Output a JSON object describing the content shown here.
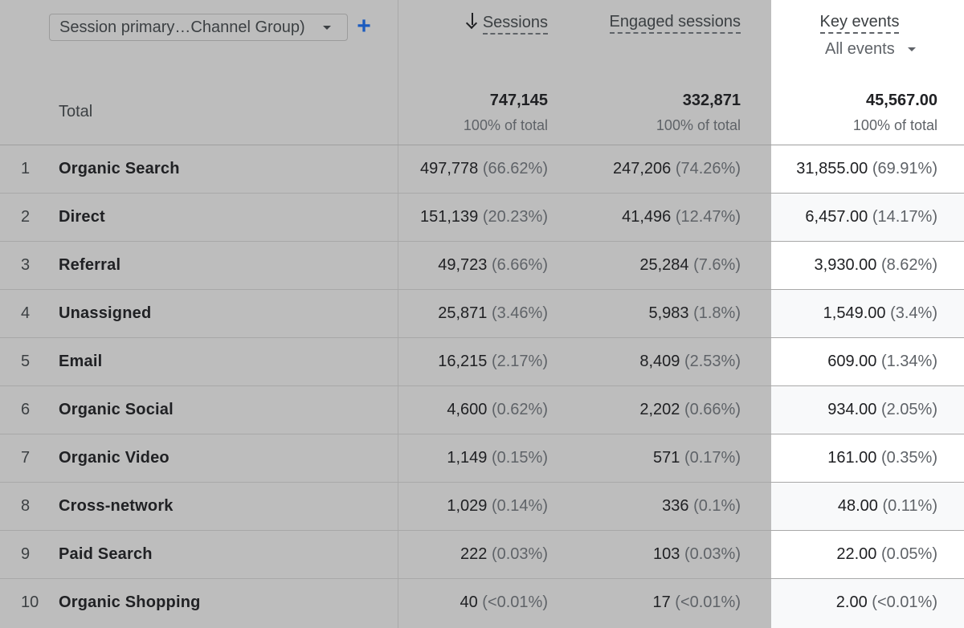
{
  "header": {
    "dimension_select": "Session primary…Channel Group)",
    "add_dimension": "+",
    "sessions": "Sessions",
    "engaged_sessions": "Engaged sessions",
    "key_events": "Key events",
    "key_events_filter": "All events"
  },
  "total": {
    "label": "Total",
    "sessions": "747,145",
    "sessions_pct": "100% of total",
    "engaged": "332,871",
    "engaged_pct": "100% of total",
    "key_events": "45,567.00",
    "key_events_pct": "100% of total"
  },
  "rows": [
    {
      "rank": "1",
      "channel": "Organic Search",
      "sessions": "497,778",
      "sessions_pct": "(66.62%)",
      "engaged": "247,206",
      "engaged_pct": "(74.26%)",
      "key": "31,855.00",
      "key_pct": "(69.91%)"
    },
    {
      "rank": "2",
      "channel": "Direct",
      "sessions": "151,139",
      "sessions_pct": "(20.23%)",
      "engaged": "41,496",
      "engaged_pct": "(12.47%)",
      "key": "6,457.00",
      "key_pct": "(14.17%)"
    },
    {
      "rank": "3",
      "channel": "Referral",
      "sessions": "49,723",
      "sessions_pct": "(6.66%)",
      "engaged": "25,284",
      "engaged_pct": "(7.6%)",
      "key": "3,930.00",
      "key_pct": "(8.62%)"
    },
    {
      "rank": "4",
      "channel": "Unassigned",
      "sessions": "25,871",
      "sessions_pct": "(3.46%)",
      "engaged": "5,983",
      "engaged_pct": "(1.8%)",
      "key": "1,549.00",
      "key_pct": "(3.4%)"
    },
    {
      "rank": "5",
      "channel": "Email",
      "sessions": "16,215",
      "sessions_pct": "(2.17%)",
      "engaged": "8,409",
      "engaged_pct": "(2.53%)",
      "key": "609.00",
      "key_pct": "(1.34%)"
    },
    {
      "rank": "6",
      "channel": "Organic Social",
      "sessions": "4,600",
      "sessions_pct": "(0.62%)",
      "engaged": "2,202",
      "engaged_pct": "(0.66%)",
      "key": "934.00",
      "key_pct": "(2.05%)"
    },
    {
      "rank": "7",
      "channel": "Organic Video",
      "sessions": "1,149",
      "sessions_pct": "(0.15%)",
      "engaged": "571",
      "engaged_pct": "(0.17%)",
      "key": "161.00",
      "key_pct": "(0.35%)"
    },
    {
      "rank": "8",
      "channel": "Cross-network",
      "sessions": "1,029",
      "sessions_pct": "(0.14%)",
      "engaged": "336",
      "engaged_pct": "(0.1%)",
      "key": "48.00",
      "key_pct": "(0.11%)"
    },
    {
      "rank": "9",
      "channel": "Paid Search",
      "sessions": "222",
      "sessions_pct": "(0.03%)",
      "engaged": "103",
      "engaged_pct": "(0.03%)",
      "key": "22.00",
      "key_pct": "(0.05%)"
    },
    {
      "rank": "10",
      "channel": "Organic Shopping",
      "sessions": "40",
      "sessions_pct": "(<0.01%)",
      "engaged": "17",
      "engaged_pct": "(<0.01%)",
      "key": "2.00",
      "key_pct": "(<0.01%)"
    }
  ],
  "colors": {
    "selected_bg": "#bdbdbd",
    "key_column_bg": "#ffffff",
    "accent": "#1a5bbf"
  }
}
